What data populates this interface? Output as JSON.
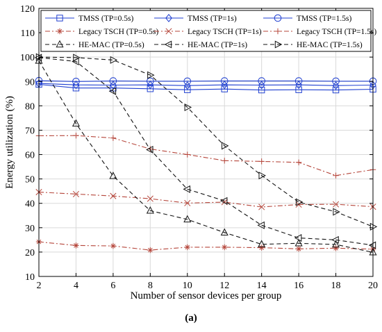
{
  "caption": "(a)",
  "chart_data": {
    "type": "line",
    "xlabel": "Number of sensor devices per group",
    "ylabel": "Energy utilization (%)",
    "xlim": [
      2,
      20
    ],
    "ylim": [
      10,
      120
    ],
    "xticks": [
      2,
      4,
      6,
      8,
      10,
      12,
      14,
      16,
      18,
      20
    ],
    "yticks": [
      10,
      20,
      30,
      40,
      50,
      60,
      70,
      80,
      90,
      100,
      110,
      120
    ],
    "grid": true,
    "legend_position": "top",
    "x": [
      2,
      4,
      6,
      8,
      10,
      12,
      14,
      16,
      18,
      20
    ],
    "series": [
      {
        "name": "TMSS (TP=0.5s)",
        "color": "#1f3fd0",
        "dash": "solid",
        "marker": "square",
        "values": [
          88.8,
          87.3,
          87.3,
          87.0,
          86.6,
          86.9,
          86.5,
          86.6,
          86.5,
          86.8
        ]
      },
      {
        "name": "TMSS (TP=1s)",
        "color": "#1f3fd0",
        "dash": "solid",
        "marker": "diamond",
        "values": [
          89.2,
          88.6,
          88.5,
          88.6,
          88.3,
          88.6,
          88.5,
          88.6,
          88.3,
          88.5
        ]
      },
      {
        "name": "TMSS (TP=1.5s)",
        "color": "#1f3fd0",
        "dash": "solid",
        "marker": "circle",
        "values": [
          90.3,
          90.0,
          90.2,
          90.1,
          90.1,
          90.2,
          90.2,
          90.2,
          90.1,
          90.1
        ]
      },
      {
        "name": "Legacy TSCH (TP=0.5s)",
        "color": "#b5453a",
        "dash": "dashdot",
        "marker": "asterisk",
        "values": [
          24.2,
          22.7,
          22.5,
          20.8,
          22.0,
          22.0,
          21.8,
          21.3,
          21.6,
          21.2
        ]
      },
      {
        "name": "Legacy TSCH (TP=1s)",
        "color": "#b5453a",
        "dash": "dashdot",
        "marker": "x",
        "values": [
          44.6,
          43.8,
          43.0,
          41.9,
          40.1,
          40.5,
          38.5,
          39.5,
          39.6,
          38.6
        ]
      },
      {
        "name": "Legacy TSCH (TP=1.5s)",
        "color": "#b5453a",
        "dash": "dashdot",
        "marker": "plus",
        "values": [
          67.7,
          67.8,
          66.8,
          62.3,
          60.0,
          57.5,
          57.2,
          56.8,
          51.4,
          53.8
        ]
      },
      {
        "name": "HE-MAC (TP=0.5s)",
        "color": "#111111",
        "dash": "dashed",
        "marker": "triangle-up",
        "values": [
          98.5,
          72.7,
          51.2,
          37.0,
          33.4,
          28.0,
          23.2,
          23.6,
          23.1,
          19.9
        ]
      },
      {
        "name": "HE-MAC (TP=1s)",
        "color": "#111111",
        "dash": "dashed",
        "marker": "triangle-left",
        "values": [
          99.8,
          98.2,
          86.0,
          62.0,
          45.8,
          41.0,
          31.0,
          25.8,
          25.0,
          22.8
        ]
      },
      {
        "name": "HE-MAC (TP=1.5s)",
        "color": "#111111",
        "dash": "dashed",
        "marker": "triangle-right",
        "values": [
          100.0,
          99.8,
          98.8,
          92.6,
          79.4,
          63.6,
          51.4,
          40.5,
          36.5,
          30.4
        ]
      }
    ]
  }
}
